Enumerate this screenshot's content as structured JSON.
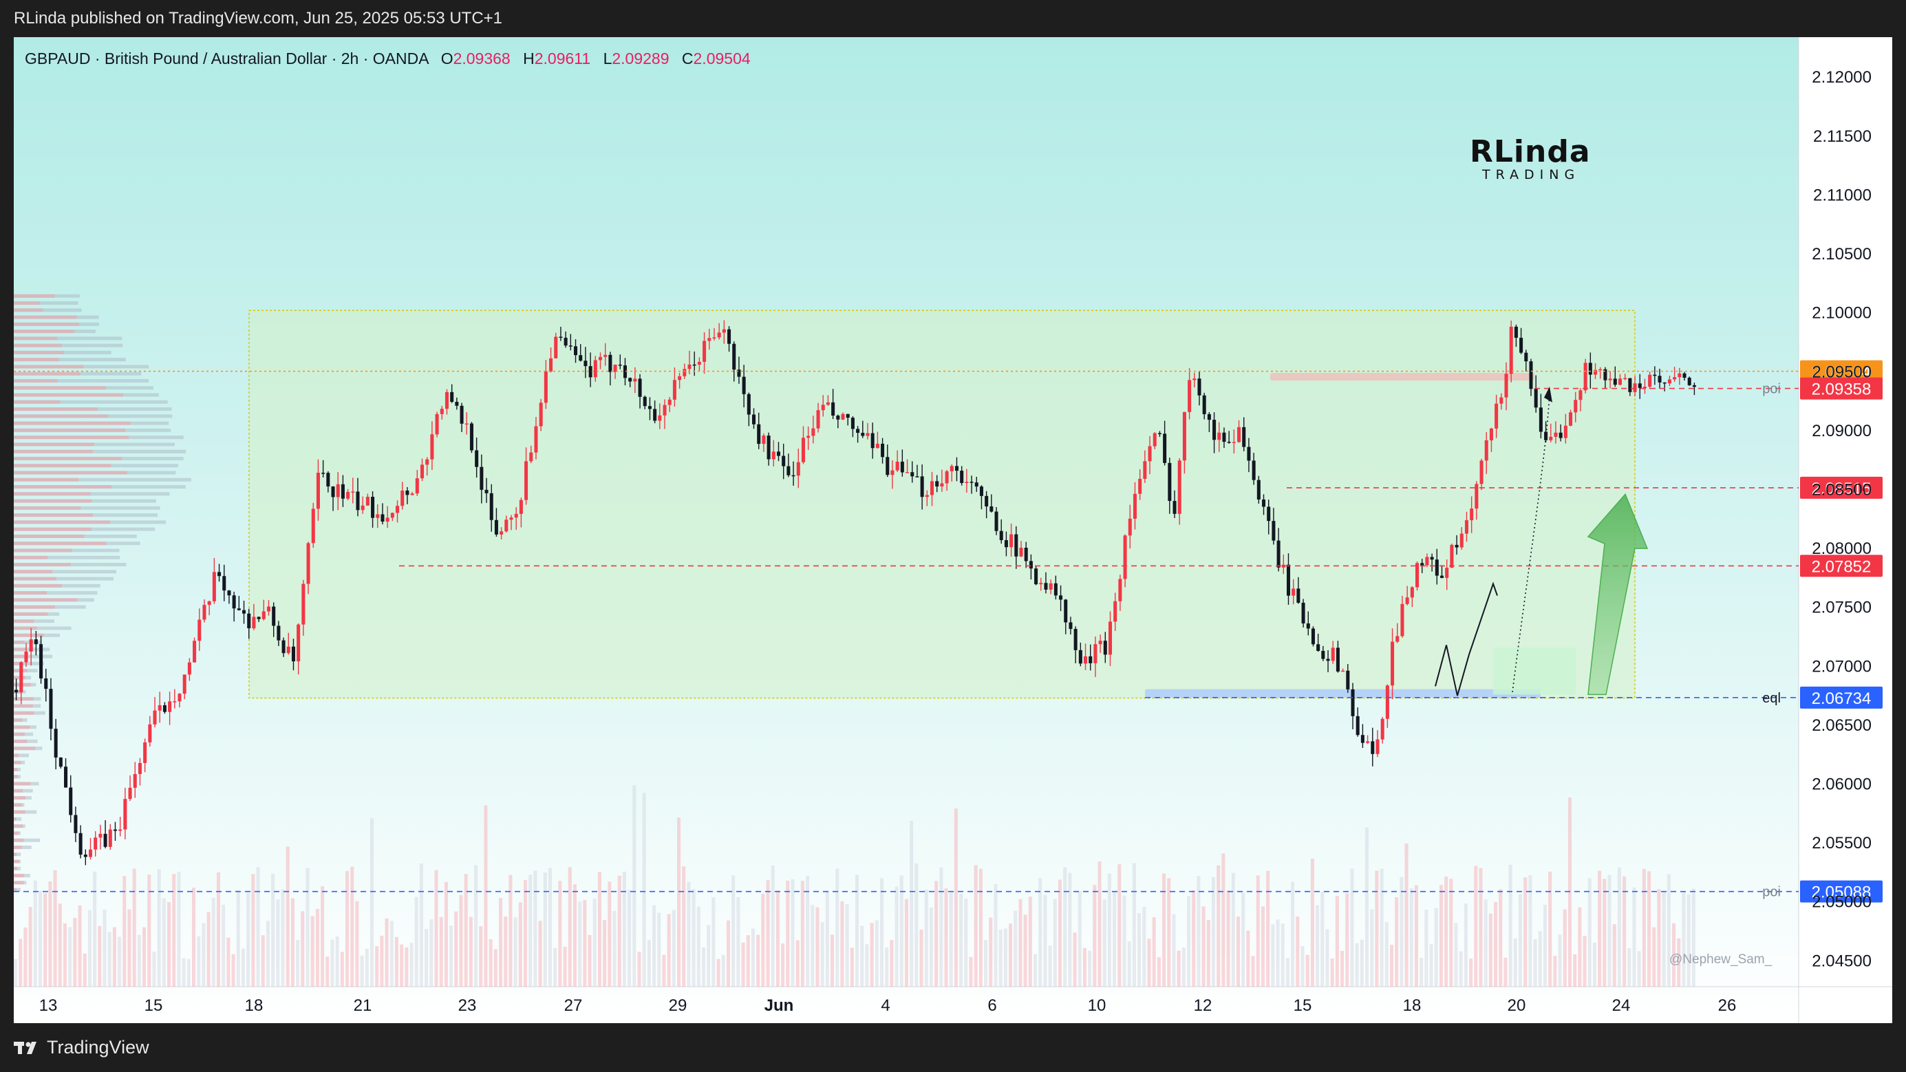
{
  "topbar": {
    "published": "RLinda published on TradingView.com, Jun 25, 2025 05:53 UTC+1"
  },
  "header": {
    "symbol": "GBPAUD · British Pound / Australian Dollar · 2h · OANDA",
    "o_label": "O",
    "o_value": "2.09368",
    "h_label": "H",
    "h_value": "2.09611",
    "l_label": "L",
    "l_value": "2.09289",
    "c_label": "C",
    "c_value": "2.09504"
  },
  "watermark": {
    "main": "RLinda",
    "sub": "TRADING"
  },
  "credit": "@Nephew_Sam_",
  "footer": {
    "brand": "TradingView"
  },
  "colors": {
    "up": "#f23645",
    "down": "#131722",
    "accent_pink": "#e91e63",
    "last_price": "#f7931a",
    "level_red": "#f23645",
    "level_blue": "#2962ff",
    "range_fill": "#d6f0c8",
    "range_border": "#d4c700"
  },
  "chart_data": {
    "type": "candlestick",
    "symbol": "GBPAUD",
    "timeframe": "2h",
    "x_ticks": [
      "13",
      "15",
      "18",
      "21",
      "23",
      "27",
      "29",
      "Jun",
      "4",
      "6",
      "10",
      "12",
      "15",
      "18",
      "20",
      "24",
      "26"
    ],
    "y_ticks": [
      "2.12000",
      "2.11500",
      "2.11000",
      "2.10500",
      "2.10000",
      "2.09500",
      "2.09000",
      "2.08500",
      "2.08000",
      "2.07500",
      "2.07000",
      "2.06500",
      "2.06000",
      "2.05500",
      "2.05000",
      "2.04500"
    ],
    "ylim": [
      2.0428,
      2.1234
    ],
    "price_labels": [
      {
        "value": 2.09504,
        "text": "2.09504",
        "kind": "last"
      },
      {
        "value": 2.09358,
        "text": "2.09358",
        "kind": "red"
      },
      {
        "value": 2.08515,
        "text": "2.08515",
        "kind": "red"
      },
      {
        "value": 2.07852,
        "text": "2.07852",
        "kind": "red"
      },
      {
        "value": 2.06734,
        "text": "2.06734",
        "kind": "blue"
      },
      {
        "value": 2.05088,
        "text": "2.05088",
        "kind": "blue"
      }
    ],
    "level_tags": [
      {
        "value": 2.09358,
        "text": "poi"
      },
      {
        "value": 2.06734,
        "text": "eql"
      },
      {
        "value": 2.05088,
        "text": "poi"
      }
    ],
    "range_box": {
      "top": 2.1002,
      "bottom": 2.0673,
      "from": "18",
      "to": "24"
    },
    "key_prices": [
      {
        "x": 0.0,
        "price": 2.068
      },
      {
        "x": 0.01,
        "price": 2.073
      },
      {
        "x": 0.025,
        "price": 2.062
      },
      {
        "x": 0.04,
        "price": 2.054
      },
      {
        "x": 0.06,
        "price": 2.056
      },
      {
        "x": 0.08,
        "price": 2.065
      },
      {
        "x": 0.1,
        "price": 2.069
      },
      {
        "x": 0.12,
        "price": 2.078
      },
      {
        "x": 0.135,
        "price": 2.074
      },
      {
        "x": 0.15,
        "price": 2.0745
      },
      {
        "x": 0.165,
        "price": 2.07
      },
      {
        "x": 0.18,
        "price": 2.086
      },
      {
        "x": 0.2,
        "price": 2.084
      },
      {
        "x": 0.22,
        "price": 2.083
      },
      {
        "x": 0.24,
        "price": 2.086
      },
      {
        "x": 0.255,
        "price": 2.093
      },
      {
        "x": 0.27,
        "price": 2.09
      },
      {
        "x": 0.285,
        "price": 2.081
      },
      {
        "x": 0.3,
        "price": 2.084
      },
      {
        "x": 0.32,
        "price": 2.098
      },
      {
        "x": 0.34,
        "price": 2.095
      },
      {
        "x": 0.36,
        "price": 2.096
      },
      {
        "x": 0.38,
        "price": 2.091
      },
      {
        "x": 0.4,
        "price": 2.095
      },
      {
        "x": 0.42,
        "price": 2.099
      },
      {
        "x": 0.44,
        "price": 2.09
      },
      {
        "x": 0.46,
        "price": 2.086
      },
      {
        "x": 0.48,
        "price": 2.092
      },
      {
        "x": 0.5,
        "price": 2.09
      },
      {
        "x": 0.52,
        "price": 2.087
      },
      {
        "x": 0.54,
        "price": 2.085
      },
      {
        "x": 0.56,
        "price": 2.087
      },
      {
        "x": 0.58,
        "price": 2.083
      },
      {
        "x": 0.6,
        "price": 2.079
      },
      {
        "x": 0.62,
        "price": 2.076
      },
      {
        "x": 0.635,
        "price": 2.07
      },
      {
        "x": 0.65,
        "price": 2.072
      },
      {
        "x": 0.665,
        "price": 2.084
      },
      {
        "x": 0.68,
        "price": 2.09
      },
      {
        "x": 0.69,
        "price": 2.083
      },
      {
        "x": 0.7,
        "price": 2.096
      },
      {
        "x": 0.715,
        "price": 2.089
      },
      {
        "x": 0.73,
        "price": 2.09
      },
      {
        "x": 0.745,
        "price": 2.082
      },
      {
        "x": 0.76,
        "price": 2.076
      },
      {
        "x": 0.775,
        "price": 2.072
      },
      {
        "x": 0.79,
        "price": 2.07
      },
      {
        "x": 0.8,
        "price": 2.064
      },
      {
        "x": 0.81,
        "price": 2.062
      },
      {
        "x": 0.82,
        "price": 2.072
      },
      {
        "x": 0.835,
        "price": 2.079
      },
      {
        "x": 0.85,
        "price": 2.078
      },
      {
        "x": 0.865,
        "price": 2.082
      },
      {
        "x": 0.875,
        "price": 2.088
      },
      {
        "x": 0.885,
        "price": 2.093
      },
      {
        "x": 0.892,
        "price": 2.099
      },
      {
        "x": 0.9,
        "price": 2.096
      },
      {
        "x": 0.91,
        "price": 2.088
      },
      {
        "x": 0.92,
        "price": 2.09
      },
      {
        "x": 0.935,
        "price": 2.095
      },
      {
        "x": 0.94,
        "price": 2.096
      },
      {
        "x": 0.947,
        "price": 2.094
      }
    ]
  }
}
